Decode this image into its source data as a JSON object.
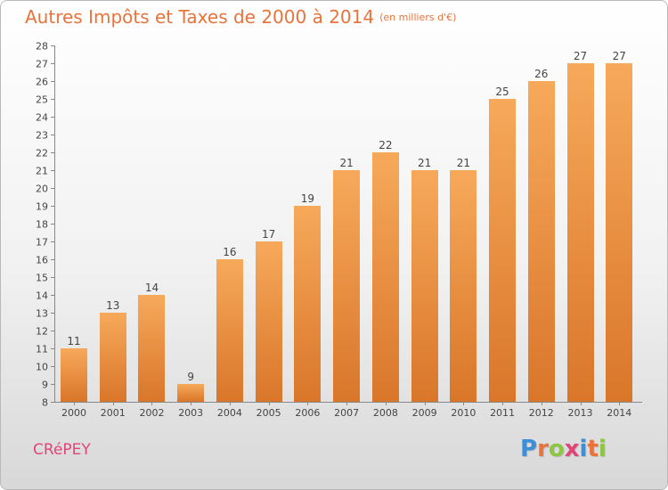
{
  "header": {
    "title": "Autres Impôts et Taxes de 2000 à 2014",
    "unit": "(en milliers d'€)"
  },
  "footer": {
    "commune": "CRéPEY",
    "logo_letters": [
      "P",
      "r",
      "o",
      "x",
      "i",
      "t",
      "i"
    ],
    "logo_colors": [
      "#3b8fd6",
      "#e9733a",
      "#8dc63f",
      "#e0457a",
      "#3b8fd6",
      "#e9733a",
      "#8dc63f"
    ]
  },
  "colors": {
    "bar_light": "#f7a95a",
    "bar_dark": "#d9762a",
    "title": "#e9733a",
    "commune": "#e0457a"
  },
  "chart_data": {
    "type": "bar",
    "title": "Autres Impôts et Taxes de 2000 à 2014",
    "subtitle": "(en milliers d'€)",
    "categories": [
      "2000",
      "2001",
      "2002",
      "2003",
      "2004",
      "2005",
      "2006",
      "2007",
      "2008",
      "2009",
      "2010",
      "2011",
      "2012",
      "2013",
      "2014"
    ],
    "values": [
      11,
      13,
      14,
      9,
      16,
      17,
      19,
      21,
      22,
      21,
      21,
      25,
      26,
      27,
      27
    ],
    "ylim": [
      8,
      28
    ],
    "yticks": [
      8,
      9,
      10,
      11,
      12,
      13,
      14,
      15,
      16,
      17,
      18,
      19,
      20,
      21,
      22,
      23,
      24,
      25,
      26,
      27,
      28
    ],
    "grid": false,
    "data_labels": true
  }
}
